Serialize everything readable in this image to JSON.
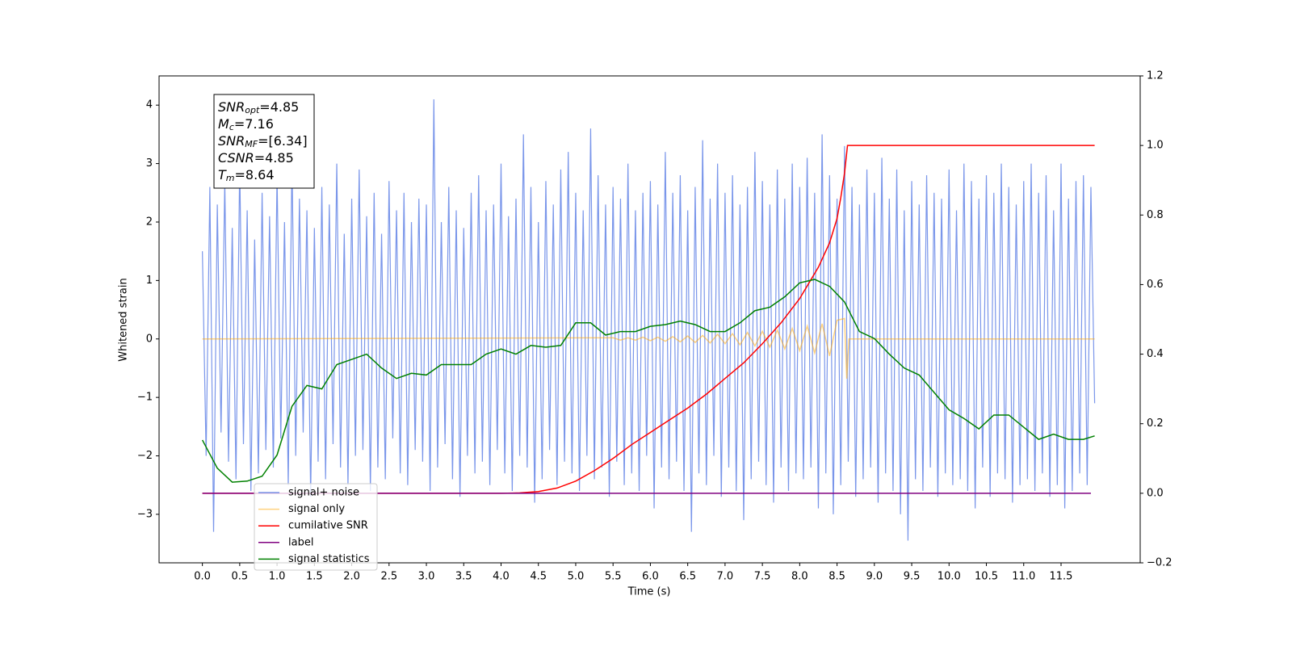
{
  "chart_data": {
    "type": "line",
    "xlabel": "Time (s)",
    "ylabel": "Whitened strain",
    "xlim": [
      -0.58,
      12.56
    ],
    "ylim": [
      -3.83,
      4.5
    ],
    "y2lim": [
      -0.2,
      1.2
    ],
    "xticks": [
      {
        "value": 0,
        "label": "0.0"
      },
      0.5,
      {
        "value": 1,
        "label": "1.0"
      },
      1.5,
      {
        "value": 2,
        "label": "2.0"
      },
      2.5,
      {
        "value": 3,
        "label": "3.0"
      },
      3.5,
      {
        "value": 4,
        "label": "4.0"
      },
      4.5,
      {
        "value": 5,
        "label": "5.0"
      },
      5.5,
      {
        "value": 6,
        "label": "6.0"
      },
      6.5,
      {
        "value": 7,
        "label": "7.0"
      },
      7.5,
      {
        "value": 8,
        "label": "8.0"
      },
      8.5,
      {
        "value": 9,
        "label": "9.0"
      },
      9.5,
      {
        "value": 10,
        "label": "10.0"
      },
      10.5,
      {
        "value": 11,
        "label": "11.0"
      },
      11.5
    ],
    "yticks": [
      {
        "value": -3,
        "label": "−3"
      },
      {
        "value": -2,
        "label": "−2"
      },
      {
        "value": -1,
        "label": "−1"
      },
      0,
      1,
      2,
      3,
      4
    ],
    "y2ticks": [
      {
        "value": -0.2,
        "label": "−0.2"
      },
      {
        "value": 0,
        "label": "0.0"
      },
      0.2,
      0.4,
      0.6,
      0.8,
      {
        "value": 1,
        "label": "1.0"
      },
      1.2
    ],
    "legend": "lower left",
    "annotations": [
      {
        "symbol": "SNR",
        "subscript": "opt",
        "text": "=4.85"
      },
      {
        "symbol": "M",
        "subscript": "c",
        "text": "=7.16"
      },
      {
        "symbol": "SNR",
        "subscript": "MF",
        "text": "=[6.34]"
      },
      {
        "symbol": "CSNR",
        "text": "=4.85"
      },
      {
        "symbol": "T",
        "subscript": "m",
        "text": "=8.64"
      }
    ],
    "series": [
      {
        "name": "signal+ noise",
        "color": "royalblue",
        "alpha": 0.7,
        "x": [
          0,
          0.05,
          0.1,
          0.15,
          0.2,
          0.25,
          0.3,
          0.35,
          0.4,
          0.45,
          0.5,
          0.55,
          0.6,
          0.65,
          0.7,
          0.75,
          0.8,
          0.85,
          0.9,
          0.95,
          1,
          1.05,
          1.1,
          1.15,
          1.2,
          1.25,
          1.3,
          1.35,
          1.4,
          1.45,
          1.5,
          1.55,
          1.6,
          1.65,
          1.7,
          1.75,
          1.8,
          1.85,
          1.9,
          1.95,
          2,
          2.05,
          2.1,
          2.15,
          2.2,
          2.25,
          2.3,
          2.35,
          2.4,
          2.45,
          2.5,
          2.55,
          2.6,
          2.65,
          2.7,
          2.75,
          2.8,
          2.85,
          2.9,
          2.95,
          3,
          3.05,
          3.1,
          3.15,
          3.2,
          3.25,
          3.3,
          3.35,
          3.4,
          3.45,
          3.5,
          3.55,
          3.6,
          3.65,
          3.7,
          3.75,
          3.8,
          3.85,
          3.9,
          3.95,
          4,
          4.05,
          4.1,
          4.15,
          4.2,
          4.25,
          4.3,
          4.35,
          4.4,
          4.45,
          4.5,
          4.55,
          4.6,
          4.65,
          4.7,
          4.75,
          4.8,
          4.85,
          4.9,
          4.95,
          5,
          5.05,
          5.1,
          5.15,
          5.2,
          5.25,
          5.3,
          5.35,
          5.4,
          5.45,
          5.5,
          5.55,
          5.6,
          5.65,
          5.7,
          5.75,
          5.8,
          5.85,
          5.9,
          5.95,
          6,
          6.05,
          6.1,
          6.15,
          6.2,
          6.25,
          6.3,
          6.35,
          6.4,
          6.45,
          6.5,
          6.55,
          6.6,
          6.65,
          6.7,
          6.75,
          6.8,
          6.85,
          6.9,
          6.95,
          7,
          7.05,
          7.1,
          7.15,
          7.2,
          7.25,
          7.3,
          7.35,
          7.4,
          7.45,
          7.5,
          7.55,
          7.6,
          7.65,
          7.7,
          7.75,
          7.8,
          7.85,
          7.9,
          7.95,
          8,
          8.05,
          8.1,
          8.15,
          8.2,
          8.25,
          8.3,
          8.35,
          8.4,
          8.45,
          8.5,
          8.55,
          8.6,
          8.65,
          8.7,
          8.75,
          8.8,
          8.85,
          8.9,
          8.95,
          9,
          9.05,
          9.1,
          9.15,
          9.2,
          9.25,
          9.3,
          9.35,
          9.4,
          9.45,
          9.5,
          9.55,
          9.6,
          9.65,
          9.7,
          9.75,
          9.8,
          9.85,
          9.9,
          9.95,
          10,
          10.05,
          10.1,
          10.15,
          10.2,
          10.25,
          10.3,
          10.35,
          10.4,
          10.45,
          10.5,
          10.55,
          10.6,
          10.65,
          10.7,
          10.75,
          10.8,
          10.85,
          10.9,
          10.95,
          11,
          11.05,
          11.1,
          11.15,
          11.2,
          11.25,
          11.3,
          11.35,
          11.4,
          11.45,
          11.5,
          11.55,
          11.6,
          11.65,
          11.7,
          11.75,
          11.8,
          11.85,
          11.9,
          11.95
        ],
        "values": [
          1.5,
          -2.0,
          2.6,
          -3.3,
          2.3,
          -1.6,
          2.7,
          -2.1,
          1.9,
          -2.4,
          3.0,
          -1.8,
          2.2,
          -2.6,
          1.7,
          -2.3,
          2.5,
          -1.9,
          2.1,
          -2.2,
          2.8,
          -1.7,
          2.0,
          -2.5,
          3.1,
          -2.0,
          2.4,
          -1.6,
          2.2,
          -2.7,
          1.9,
          -2.1,
          2.6,
          -2.4,
          2.3,
          -1.8,
          3.0,
          -2.2,
          1.8,
          -2.5,
          2.4,
          -2.0,
          2.9,
          -1.9,
          2.1,
          -2.6,
          2.5,
          -2.2,
          1.8,
          -2.4,
          2.7,
          -1.7,
          2.2,
          -2.3,
          2.5,
          -2.5,
          2.0,
          -1.9,
          2.4,
          -2.1,
          2.3,
          -2.6,
          4.1,
          -2.2,
          2.0,
          -1.8,
          2.6,
          -2.4,
          2.2,
          -2.7,
          1.9,
          -2.0,
          2.5,
          -2.3,
          2.8,
          -2.1,
          2.2,
          -2.5,
          2.3,
          -1.9,
          3.0,
          -2.3,
          2.1,
          -2.6,
          2.4,
          -2.0,
          3.5,
          -2.2,
          2.6,
          -2.8,
          2.0,
          -2.4,
          2.7,
          -1.9,
          2.3,
          -2.5,
          2.9,
          -2.1,
          3.2,
          -2.3,
          2.5,
          -2.6,
          2.2,
          -2.0,
          3.6,
          -2.4,
          2.8,
          -2.2,
          2.3,
          -2.7,
          2.6,
          -2.1,
          2.4,
          -2.5,
          3.0,
          -2.3,
          2.2,
          -2.6,
          2.5,
          -2.0,
          2.7,
          -2.9,
          2.3,
          -2.2,
          3.2,
          -2.4,
          2.5,
          -2.1,
          2.8,
          -2.6,
          2.2,
          -3.3,
          2.6,
          -2.3,
          3.4,
          -2.5,
          2.4,
          -2.0,
          3.0,
          -2.7,
          2.5,
          -2.2,
          2.8,
          -2.6,
          2.3,
          -3.1,
          2.6,
          -2.4,
          3.2,
          -2.1,
          2.7,
          -2.5,
          2.3,
          -2.8,
          2.9,
          -2.2,
          2.4,
          -2.6,
          3.0,
          -2.3,
          2.6,
          -2.4,
          3.1,
          -2.2,
          2.5,
          -2.9,
          3.5,
          -2.3,
          2.8,
          -3.0,
          2.4,
          -2.5,
          3.3,
          -2.1,
          2.6,
          -2.7,
          2.3,
          -2.4,
          2.9,
          -2.2,
          2.5,
          -2.8,
          3.1,
          -2.3,
          2.4,
          -2.6,
          2.9,
          -3.0,
          2.2,
          -3.45,
          2.7,
          -2.4,
          2.3,
          -2.6,
          2.8,
          -2.2,
          2.5,
          -2.7,
          2.4,
          -2.3,
          2.9,
          -2.5,
          2.2,
          -2.4,
          3.0,
          -2.6,
          2.7,
          -2.9,
          2.4,
          -2.2,
          2.8,
          -2.7,
          2.5,
          -2.3,
          3.0,
          -2.4,
          2.6,
          -2.8,
          2.3,
          -2.5,
          2.7,
          -2.4,
          3.0,
          -2.6,
          2.5,
          -2.3,
          2.8,
          -2.7,
          2.2,
          -2.5,
          3.0,
          -2.9,
          2.4,
          -2.6,
          2.7,
          -2.3,
          2.8,
          -2.5,
          2.6,
          -1.1
        ]
      },
      {
        "name": "signal only",
        "color": "orange",
        "alpha": 0.5,
        "x": [
          0,
          5.5,
          5.6,
          5.7,
          5.8,
          5.9,
          6.0,
          6.1,
          6.2,
          6.3,
          6.4,
          6.5,
          6.6,
          6.7,
          6.8,
          6.9,
          7.0,
          7.1,
          7.2,
          7.3,
          7.4,
          7.5,
          7.6,
          7.7,
          7.8,
          7.9,
          8.0,
          8.1,
          8.2,
          8.3,
          8.4,
          8.5,
          8.6,
          8.63,
          8.66,
          11.95
        ],
        "values": [
          0,
          0.02,
          -0.02,
          0.02,
          -0.02,
          0.03,
          -0.03,
          0.03,
          -0.04,
          0.04,
          -0.05,
          0.05,
          -0.06,
          0.06,
          -0.07,
          0.08,
          -0.08,
          0.09,
          -0.1,
          0.11,
          -0.12,
          0.13,
          -0.14,
          0.15,
          -0.17,
          0.18,
          -0.2,
          0.22,
          -0.24,
          0.26,
          -0.29,
          0.32,
          0.35,
          -0.68,
          0,
          0
        ]
      },
      {
        "name": "cumilative SNR",
        "color": "red",
        "axis": "y2",
        "x": [
          0,
          3.5,
          4.0,
          4.25,
          4.5,
          4.75,
          5.0,
          5.25,
          5.5,
          5.75,
          6.0,
          6.25,
          6.5,
          6.75,
          7.0,
          7.25,
          7.5,
          7.75,
          8.0,
          8.25,
          8.4,
          8.5,
          8.55,
          8.6,
          8.64,
          11.95
        ],
        "values": [
          0,
          0,
          0,
          0.001,
          0.005,
          0.015,
          0.035,
          0.065,
          0.1,
          0.14,
          0.175,
          0.21,
          0.245,
          0.285,
          0.33,
          0.375,
          0.43,
          0.49,
          0.56,
          0.65,
          0.72,
          0.79,
          0.85,
          0.92,
          1,
          1
        ]
      },
      {
        "name": "label",
        "color": "purple",
        "axis": "y2",
        "x": [
          0,
          11.9
        ],
        "values": [
          0,
          0
        ]
      },
      {
        "name": "signal statistics",
        "color": "green",
        "axis": "y2",
        "x": [
          0,
          0.2,
          0.4,
          0.6,
          0.8,
          1.0,
          1.2,
          1.4,
          1.6,
          1.8,
          2.0,
          2.2,
          2.4,
          2.6,
          2.8,
          3.0,
          3.2,
          3.4,
          3.6,
          3.8,
          4.0,
          4.2,
          4.4,
          4.6,
          4.8,
          5.0,
          5.2,
          5.4,
          5.6,
          5.8,
          6.0,
          6.2,
          6.4,
          6.6,
          6.8,
          7.0,
          7.2,
          7.4,
          7.6,
          7.8,
          8.0,
          8.2,
          8.4,
          8.6,
          8.8,
          9.0,
          9.2,
          9.4,
          9.6,
          9.8,
          10.0,
          10.2,
          10.4,
          10.6,
          10.8,
          11.0,
          11.2,
          11.4,
          11.6,
          11.8,
          11.95
        ],
        "values": [
          0.153,
          0.072,
          0.032,
          0.035,
          0.049,
          0.11,
          0.25,
          0.31,
          0.3,
          0.37,
          0.385,
          0.4,
          0.36,
          0.33,
          0.345,
          0.34,
          0.37,
          0.37,
          0.37,
          0.4,
          0.415,
          0.4,
          0.425,
          0.42,
          0.425,
          0.49,
          0.49,
          0.455,
          0.465,
          0.465,
          0.48,
          0.485,
          0.495,
          0.485,
          0.465,
          0.465,
          0.49,
          0.525,
          0.535,
          0.565,
          0.605,
          0.615,
          0.595,
          0.55,
          0.465,
          0.445,
          0.4,
          0.36,
          0.34,
          0.29,
          0.24,
          0.215,
          0.185,
          0.225,
          0.225,
          0.19,
          0.155,
          0.17,
          0.155,
          0.155,
          0.165
        ]
      }
    ]
  }
}
